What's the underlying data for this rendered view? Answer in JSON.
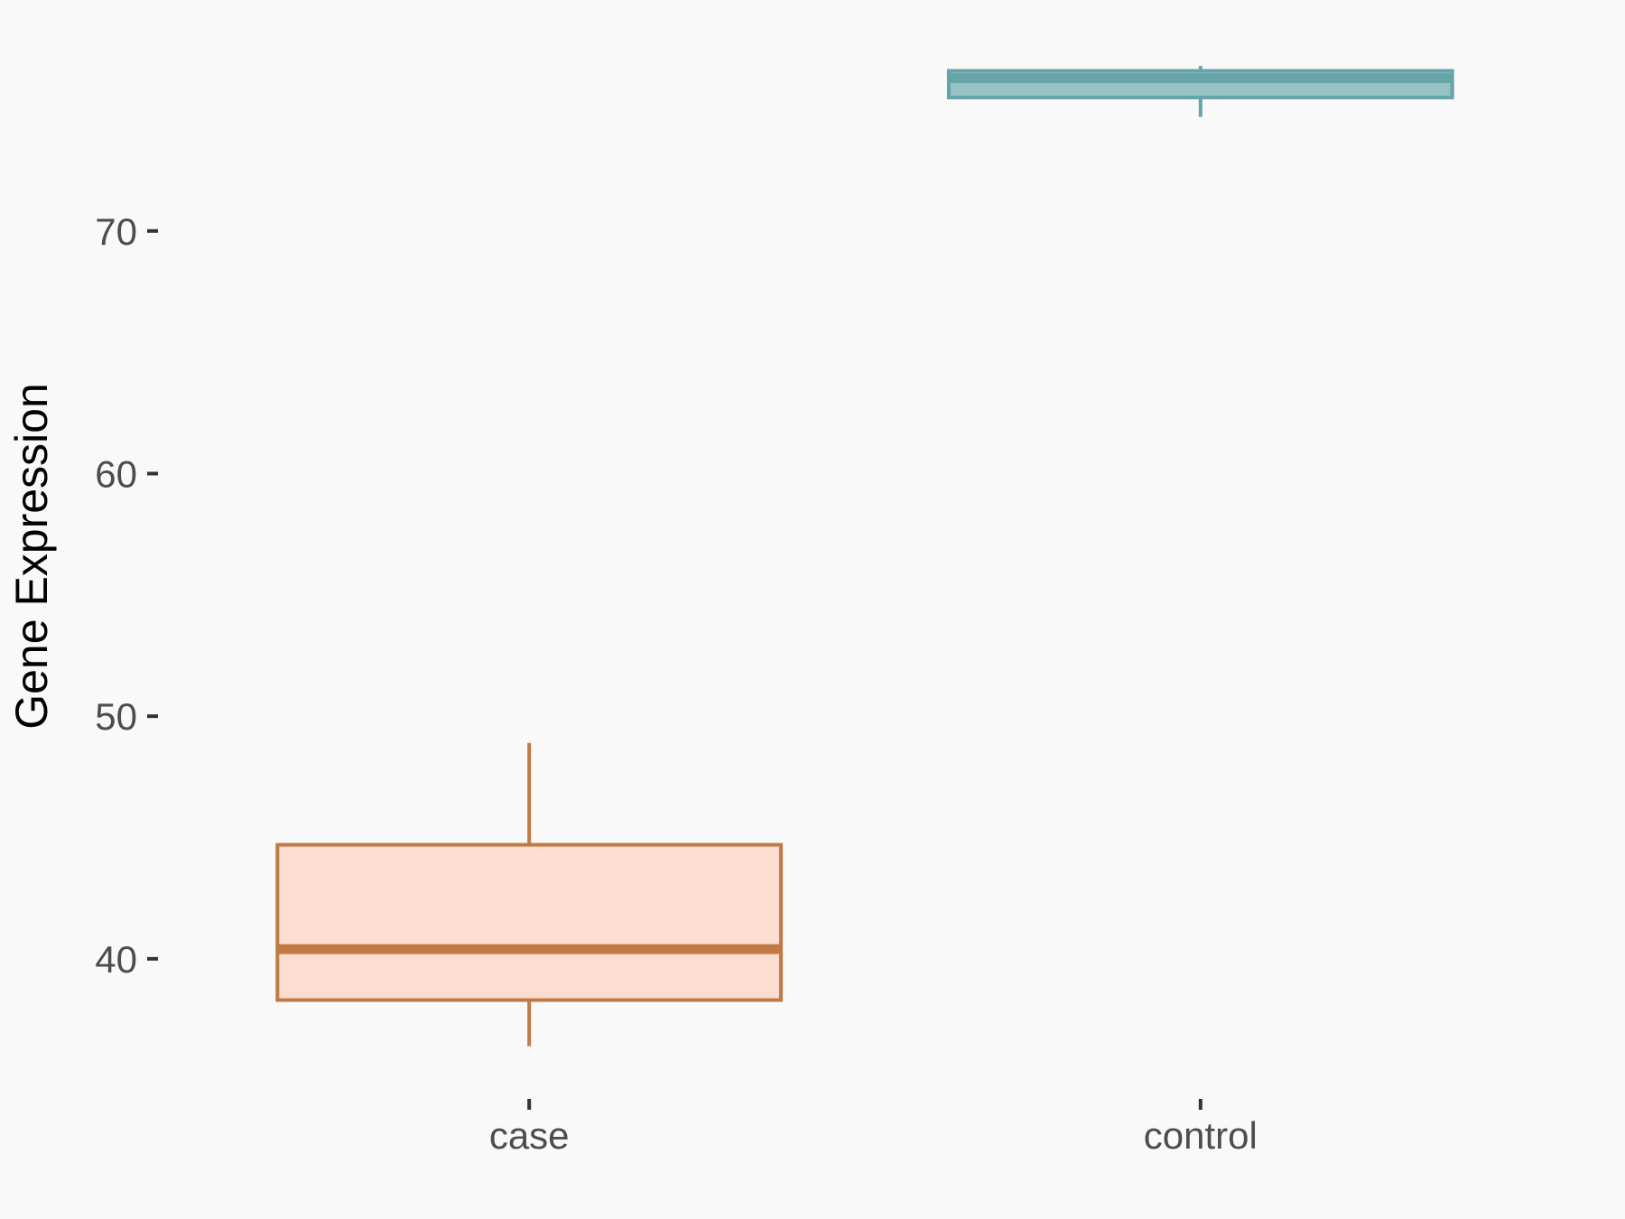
{
  "chart_data": {
    "type": "boxplot",
    "title": "",
    "xlabel": "",
    "ylabel": "Gene Expression",
    "categories": [
      "case",
      "control"
    ],
    "y_ticks": [
      40,
      50,
      60,
      70
    ],
    "ylim": [
      34.3,
      78.85
    ],
    "grid": false,
    "legend": "none",
    "background": "#F9F9F9",
    "axis_text_color": "#4D4D4D",
    "axis_title_color": "#000000",
    "tick_mark_color": "#333333",
    "series": [
      {
        "name": "case",
        "min": 36.4,
        "q1": 38.3,
        "median": 40.4,
        "q3": 44.7,
        "max": 48.9,
        "stroke": "#C27A45",
        "fill": "#FCDED1"
      },
      {
        "name": "control",
        "min": 74.7,
        "q1": 75.5,
        "median": 76.3,
        "q3": 76.6,
        "max": 76.8,
        "stroke": "#67A4AA",
        "fill": "#96C1C5"
      }
    ]
  }
}
